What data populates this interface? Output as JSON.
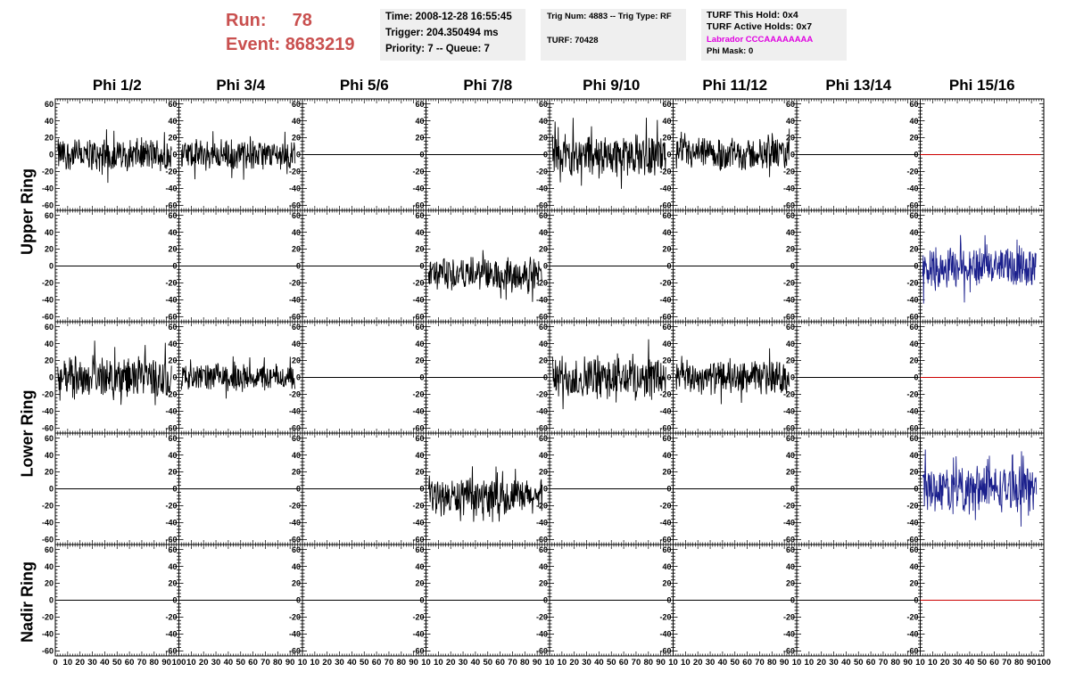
{
  "header": {
    "run_label": "Run:",
    "run_value": "78",
    "event_label": "Event:",
    "event_value": "8683219",
    "box1": {
      "time": "Time: 2008-12-28 16:55:45",
      "trigger": "Trigger: 204.350494 ms",
      "priority": "Priority: 7 -- Queue: 7"
    },
    "box2": {
      "trig": "Trig Num: 4883 -- Trig Type: RF",
      "turf": "TURF: 70428"
    },
    "box3": {
      "hold": "TURF This Hold: 0x4",
      "active": "TURF Active Holds: 0x7",
      "labrador": "Labrador CCCAAAAAAAA",
      "phimask": "Phi Mask: 0"
    }
  },
  "colors": {
    "title_red": "#c9504f",
    "labrador_magenta": "#e000e0",
    "panel_bg": "#efefef",
    "trace_black": "#000000",
    "trace_blue": "#1a1f8c",
    "flat_red": "#cc0000"
  },
  "chart_data": {
    "type": "line",
    "columns": [
      "Phi 1/2",
      "Phi 3/4",
      "Phi 5/6",
      "Phi 7/8",
      "Phi 9/10",
      "Phi 11/12",
      "Phi 13/14",
      "Phi 15/16"
    ],
    "rings": [
      "Upper Ring",
      "Lower Ring",
      "Nadir Ring"
    ],
    "ylim": [
      -60,
      60
    ],
    "xlim": [
      0,
      100
    ],
    "ytick_labels": [
      "60",
      "40",
      "20",
      "0",
      "-20",
      "-40",
      "-60"
    ],
    "xtick_labels_first": [
      "0",
      "10",
      "20",
      "30",
      "40",
      "50",
      "60",
      "70",
      "80",
      "90",
      "100"
    ],
    "xtick_labels_mid": [
      "10",
      "20",
      "30",
      "40",
      "50",
      "60",
      "70",
      "80",
      "90",
      "10"
    ],
    "xtick_labels_last": [
      "10",
      "20",
      "30",
      "40",
      "50",
      "60",
      "70",
      "80",
      "90",
      "100"
    ],
    "rows": [
      {
        "ring": "Upper Ring",
        "cells": [
          {
            "kind": "noise",
            "amp": 22,
            "color": "#000000"
          },
          {
            "kind": "noise",
            "amp": 20,
            "color": "#000000"
          },
          {
            "kind": "flat",
            "color": "#000000"
          },
          {
            "kind": "flat",
            "color": "#000000"
          },
          {
            "kind": "noise",
            "amp": 28,
            "color": "#000000"
          },
          {
            "kind": "noise",
            "amp": 22,
            "color": "#000000"
          },
          {
            "kind": "flat",
            "color": "#000000"
          },
          {
            "kind": "flat",
            "color": "#cc0000"
          }
        ]
      },
      {
        "ring": "Upper Ring",
        "cells": [
          {
            "kind": "flat",
            "color": "#000000"
          },
          {
            "kind": "flat",
            "color": "#000000"
          },
          {
            "kind": "flat",
            "color": "#000000"
          },
          {
            "kind": "noise",
            "amp": 22,
            "offset": -10,
            "color": "#000000"
          },
          {
            "kind": "flat",
            "color": "#000000"
          },
          {
            "kind": "flat",
            "color": "#000000"
          },
          {
            "kind": "flat",
            "color": "#000000"
          },
          {
            "kind": "noise",
            "amp": 28,
            "color": "#1a1f8c"
          }
        ]
      },
      {
        "ring": "Lower Ring",
        "cells": [
          {
            "kind": "noise",
            "amp": 28,
            "color": "#000000"
          },
          {
            "kind": "noise",
            "amp": 18,
            "color": "#000000"
          },
          {
            "kind": "flat",
            "color": "#000000"
          },
          {
            "kind": "flat",
            "color": "#000000"
          },
          {
            "kind": "noise",
            "amp": 30,
            "color": "#000000"
          },
          {
            "kind": "noise",
            "amp": 22,
            "color": "#000000"
          },
          {
            "kind": "flat",
            "color": "#000000"
          },
          {
            "kind": "flat",
            "color": "#cc0000"
          }
        ]
      },
      {
        "ring": "Lower Ring",
        "cells": [
          {
            "kind": "flat",
            "color": "#000000"
          },
          {
            "kind": "flat",
            "color": "#000000"
          },
          {
            "kind": "flat",
            "color": "#000000"
          },
          {
            "kind": "noise",
            "amp": 24,
            "offset": -10,
            "color": "#000000"
          },
          {
            "kind": "flat",
            "color": "#000000"
          },
          {
            "kind": "flat",
            "color": "#000000"
          },
          {
            "kind": "flat",
            "color": "#000000"
          },
          {
            "kind": "noise",
            "amp": 30,
            "color": "#1a1f8c"
          }
        ]
      },
      {
        "ring": "Nadir Ring",
        "cells": [
          {
            "kind": "flat",
            "color": "#000000"
          },
          {
            "kind": "flat",
            "color": "#000000"
          },
          {
            "kind": "flat",
            "color": "#000000"
          },
          {
            "kind": "flat",
            "color": "#000000"
          },
          {
            "kind": "flat",
            "color": "#000000"
          },
          {
            "kind": "flat",
            "color": "#000000"
          },
          {
            "kind": "flat",
            "color": "#000000"
          },
          {
            "kind": "flat",
            "color": "#cc0000"
          }
        ]
      }
    ]
  }
}
